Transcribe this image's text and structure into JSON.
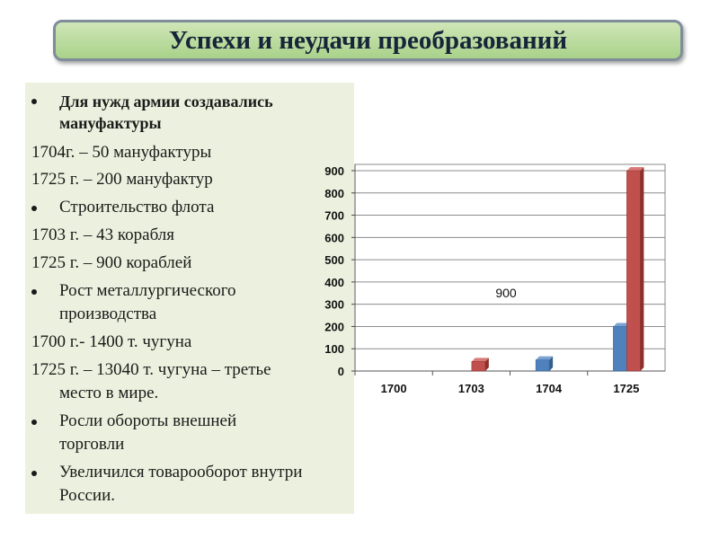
{
  "slide": {
    "title": "Успехи и неудачи преобразований"
  },
  "content": {
    "bullet_1": [
      "Для нужд армии создавались",
      "мануфактуры"
    ],
    "line_1704": "1704г. – 50 мануфактуры",
    "line_1725a": "1725 г. – 200 мануфактур",
    "bullet_2": "Строительство флота",
    "line_1703": "1703 г. – 43 корабля",
    "line_1725b": "1725 г. – 900 кораблей",
    "bullet_3": [
      "Рост металлургического",
      "производства"
    ],
    "line_1700": "1700 г.- 1400 т. чугуна",
    "line_1725c": [
      "1725 г. – 13040 т. чугуна – третье",
      "место в мире."
    ],
    "bullet_4": [
      "Росли обороты внешней",
      "торговли"
    ],
    "bullet_5": [
      "Увеличился товарооборот внутри",
      "России."
    ]
  },
  "chart_data": {
    "type": "bar",
    "categories": [
      "1700",
      "1703",
      "1704",
      "1725"
    ],
    "series": [
      {
        "color": "#4f81bd",
        "values": [
          0,
          0,
          50,
          200
        ]
      },
      {
        "color": "#c0504d",
        "values": [
          0,
          43,
          0,
          900
        ]
      }
    ],
    "ylim": [
      0,
      900
    ],
    "yticks": [
      0,
      100,
      200,
      300,
      400,
      500,
      600,
      700,
      800,
      900
    ],
    "annotation": "900",
    "grid": true
  }
}
